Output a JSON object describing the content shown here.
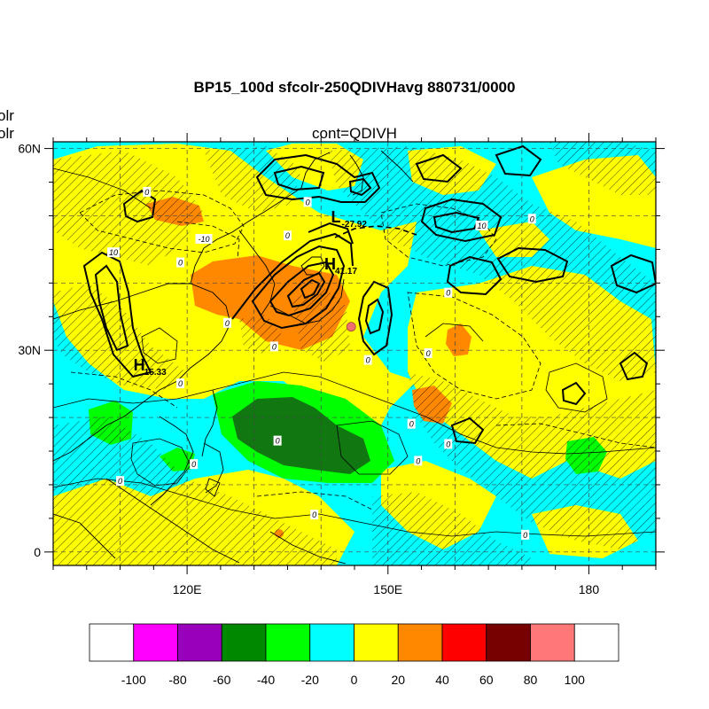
{
  "title": "BP15_100d sfcolr-250QDIVHavg  880731/0000",
  "subtitle": "cont=QDIVH",
  "left_edge_labels": [
    "olr",
    "olr"
  ],
  "axes": {
    "lat_ticks": [
      "60N",
      "30N",
      "0"
    ],
    "lon_ticks": [
      "120E",
      "150E",
      "180"
    ],
    "lat_range": [
      -2,
      61
    ],
    "lon_range": [
      100,
      190
    ]
  },
  "colorbar": {
    "labels": [
      "-100",
      "-80",
      "-60",
      "-40",
      "-20",
      "0",
      "20",
      "40",
      "60",
      "80",
      "100"
    ],
    "colors": [
      "#ffffff",
      "#ff00ff",
      "#9900bb",
      "#008800",
      "#00ff00",
      "#00ffff",
      "#ffff00",
      "#ff8800",
      "#ff0000",
      "#770000",
      "#ff7777",
      "#ffffff"
    ]
  },
  "pressure_centers": [
    {
      "type": "L",
      "letter": "L",
      "value": "-27.92",
      "lon": 141.5,
      "lat": 49
    },
    {
      "type": "H",
      "letter": "H",
      "value": "41.17",
      "lon": 140.5,
      "lat": 42
    },
    {
      "type": "H",
      "letter": "H",
      "value": "15.33",
      "lon": 112,
      "lat": 27
    }
  ],
  "contour_labels": [
    {
      "text": "0",
      "lon": 114,
      "lat": 53.5
    },
    {
      "text": "-10",
      "lon": 122.5,
      "lat": 46.5
    },
    {
      "text": "10",
      "lon": 109,
      "lat": 44.5
    },
    {
      "text": "0",
      "lon": 119,
      "lat": 43
    },
    {
      "text": "0",
      "lon": 138,
      "lat": 52
    },
    {
      "text": "0",
      "lon": 135,
      "lat": 47
    },
    {
      "text": "10",
      "lon": 164,
      "lat": 48.5
    },
    {
      "text": "0",
      "lon": 171.5,
      "lat": 49.5
    },
    {
      "text": "0",
      "lon": 159,
      "lat": 38.5
    },
    {
      "text": "0",
      "lon": 126,
      "lat": 34
    },
    {
      "text": "0",
      "lon": 133,
      "lat": 30.5
    },
    {
      "text": "0",
      "lon": 147,
      "lat": 28.5
    },
    {
      "text": "0",
      "lon": 156,
      "lat": 29.5
    },
    {
      "text": "0",
      "lon": 119,
      "lat": 25
    },
    {
      "text": "0",
      "lon": 133.5,
      "lat": 16.5
    },
    {
      "text": "0",
      "lon": 154.5,
      "lat": 13.5
    },
    {
      "text": "0",
      "lon": 153.5,
      "lat": 19
    },
    {
      "text": "0",
      "lon": 159,
      "lat": 16
    },
    {
      "text": "0",
      "lon": 121,
      "lat": 13
    },
    {
      "text": "0",
      "lon": 110,
      "lat": 10.5
    },
    {
      "text": "0",
      "lon": 139,
      "lat": 5.5
    },
    {
      "text": "0",
      "lon": 170.5,
      "lat": 2.5
    }
  ],
  "marker": {
    "lon": 144.5,
    "lat": 33.5,
    "color": "#f07070"
  }
}
